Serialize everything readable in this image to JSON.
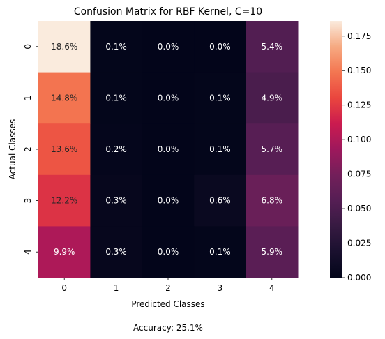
{
  "chart_data": {
    "type": "heatmap",
    "title": "Confusion Matrix for RBF Kernel, C=10",
    "xlabel": "Predicted Classes",
    "ylabel": "Actual Classes",
    "x_categories": [
      "0",
      "1",
      "2",
      "3",
      "4"
    ],
    "y_categories": [
      "0",
      "1",
      "2",
      "3",
      "4"
    ],
    "values": [
      [
        0.186,
        0.001,
        0.0,
        0.0,
        0.054
      ],
      [
        0.148,
        0.001,
        0.0,
        0.001,
        0.049
      ],
      [
        0.136,
        0.002,
        0.0,
        0.001,
        0.057
      ],
      [
        0.122,
        0.003,
        0.0,
        0.006,
        0.068
      ],
      [
        0.099,
        0.003,
        0.0,
        0.001,
        0.059
      ]
    ],
    "cell_labels": [
      [
        "18.6%",
        "0.1%",
        "0.0%",
        "0.0%",
        "5.4%"
      ],
      [
        "14.8%",
        "0.1%",
        "0.0%",
        "0.1%",
        "4.9%"
      ],
      [
        "13.6%",
        "0.2%",
        "0.0%",
        "0.1%",
        "5.7%"
      ],
      [
        "12.2%",
        "0.3%",
        "0.0%",
        "0.6%",
        "6.8%"
      ],
      [
        "9.9%",
        "0.3%",
        "0.0%",
        "0.1%",
        "5.9%"
      ]
    ],
    "colorbar": {
      "colormap": "rocket",
      "range": [
        0.0,
        0.186
      ],
      "ticks": [
        "0.000",
        "0.025",
        "0.050",
        "0.075",
        "0.100",
        "0.125",
        "0.150",
        "0.175"
      ]
    },
    "footnote": "Accuracy: 25.1%",
    "grid": false
  }
}
